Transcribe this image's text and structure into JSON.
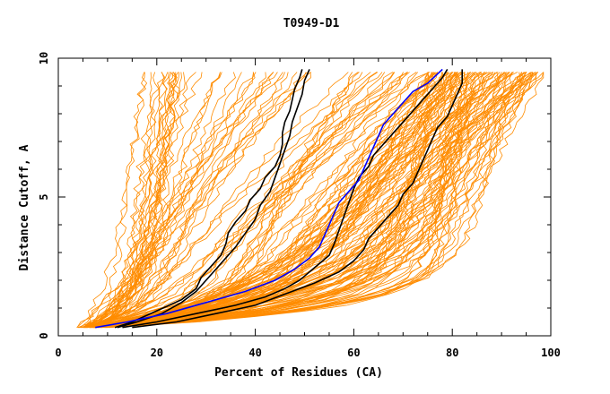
{
  "chart_data": {
    "type": "line",
    "title": "T0949-D1",
    "xlabel": "Percent of Residues (CA)",
    "ylabel": "Distance Cutoff, A",
    "xlim": [
      0,
      100
    ],
    "ylim": [
      0,
      10
    ],
    "x_ticks": [
      "0",
      "20",
      "40",
      "60",
      "80",
      "100"
    ],
    "y_ticks": [
      "0",
      "5",
      "10"
    ],
    "grid": false,
    "colors": {
      "models": "#ff8c00",
      "highlight_black": "#000000",
      "highlight_blue": "#0000ff",
      "frame": "#000000"
    },
    "series": [
      {
        "color": "#000000",
        "values": [
          [
            11.5,
            0.3
          ],
          [
            15,
            0.5
          ],
          [
            20,
            0.9
          ],
          [
            25,
            1.3
          ],
          [
            28,
            1.7
          ],
          [
            29,
            2.1
          ],
          [
            31,
            2.5
          ],
          [
            33,
            2.9
          ],
          [
            34,
            3.3
          ],
          [
            34.5,
            3.7
          ],
          [
            36,
            4.1
          ],
          [
            38,
            4.5
          ],
          [
            39,
            4.9
          ],
          [
            41,
            5.3
          ],
          [
            42,
            5.7
          ],
          [
            44,
            6.1
          ],
          [
            45,
            6.5
          ],
          [
            45.5,
            6.9
          ],
          [
            45.5,
            7.3
          ],
          [
            46,
            7.7
          ],
          [
            47,
            8.1
          ],
          [
            47.5,
            8.5
          ],
          [
            48,
            8.9
          ],
          [
            49,
            9.3
          ],
          [
            49.5,
            9.6
          ]
        ]
      },
      {
        "color": "#000000",
        "values": [
          [
            12,
            0.3
          ],
          [
            16,
            0.5
          ],
          [
            21,
            0.8
          ],
          [
            25,
            1.2
          ],
          [
            28,
            1.6
          ],
          [
            30,
            2.0
          ],
          [
            32,
            2.4
          ],
          [
            34,
            2.8
          ],
          [
            36,
            3.2
          ],
          [
            38,
            3.7
          ],
          [
            40,
            4.2
          ],
          [
            41,
            4.7
          ],
          [
            43,
            5.2
          ],
          [
            44,
            5.7
          ],
          [
            45,
            6.2
          ],
          [
            46,
            6.7
          ],
          [
            47,
            7.2
          ],
          [
            47.5,
            7.7
          ],
          [
            48.5,
            8.2
          ],
          [
            49.5,
            8.7
          ],
          [
            50,
            9.2
          ],
          [
            51,
            9.6
          ]
        ]
      },
      {
        "color": "#000000",
        "values": [
          [
            13,
            0.3
          ],
          [
            20,
            0.5
          ],
          [
            28,
            0.8
          ],
          [
            36,
            1.1
          ],
          [
            42,
            1.4
          ],
          [
            46,
            1.7
          ],
          [
            49,
            2.0
          ],
          [
            51,
            2.3
          ],
          [
            53,
            2.6
          ],
          [
            55,
            2.9
          ],
          [
            56,
            3.3
          ],
          [
            57,
            3.8
          ],
          [
            58,
            4.3
          ],
          [
            59,
            4.8
          ],
          [
            60,
            5.3
          ],
          [
            61,
            5.7
          ],
          [
            63,
            6.1
          ],
          [
            64,
            6.5
          ],
          [
            66,
            6.9
          ],
          [
            68,
            7.3
          ],
          [
            70,
            7.7
          ],
          [
            72,
            8.1
          ],
          [
            74,
            8.5
          ],
          [
            76,
            8.9
          ],
          [
            78,
            9.3
          ],
          [
            79,
            9.6
          ]
        ]
      },
      {
        "color": "#000000",
        "values": [
          [
            15,
            0.3
          ],
          [
            24,
            0.5
          ],
          [
            32,
            0.8
          ],
          [
            40,
            1.1
          ],
          [
            46,
            1.5
          ],
          [
            52,
            1.9
          ],
          [
            57,
            2.3
          ],
          [
            60,
            2.7
          ],
          [
            62,
            3.1
          ],
          [
            63,
            3.5
          ],
          [
            65,
            3.9
          ],
          [
            67,
            4.3
          ],
          [
            69,
            4.7
          ],
          [
            70,
            5.1
          ],
          [
            72,
            5.5
          ],
          [
            73,
            5.9
          ],
          [
            74,
            6.3
          ],
          [
            75,
            6.7
          ],
          [
            76,
            7.1
          ],
          [
            77,
            7.5
          ],
          [
            79,
            7.9
          ],
          [
            80,
            8.3
          ],
          [
            81,
            8.7
          ],
          [
            82,
            9.1
          ],
          [
            82,
            9.6
          ]
        ]
      },
      {
        "color": "#0000ff",
        "values": [
          [
            7.5,
            0.3
          ],
          [
            14,
            0.5
          ],
          [
            22,
            0.8
          ],
          [
            30,
            1.2
          ],
          [
            38,
            1.6
          ],
          [
            44,
            2.0
          ],
          [
            48,
            2.4
          ],
          [
            51,
            2.8
          ],
          [
            53,
            3.2
          ],
          [
            54,
            3.6
          ],
          [
            55,
            4.0
          ],
          [
            56,
            4.4
          ],
          [
            57,
            4.8
          ],
          [
            59,
            5.2
          ],
          [
            61,
            5.6
          ],
          [
            62,
            6.0
          ],
          [
            63,
            6.4
          ],
          [
            64,
            6.8
          ],
          [
            65,
            7.2
          ],
          [
            66,
            7.6
          ],
          [
            68,
            8.0
          ],
          [
            70,
            8.4
          ],
          [
            72,
            8.8
          ],
          [
            75,
            9.1
          ],
          [
            78,
            9.6
          ]
        ]
      }
    ]
  }
}
